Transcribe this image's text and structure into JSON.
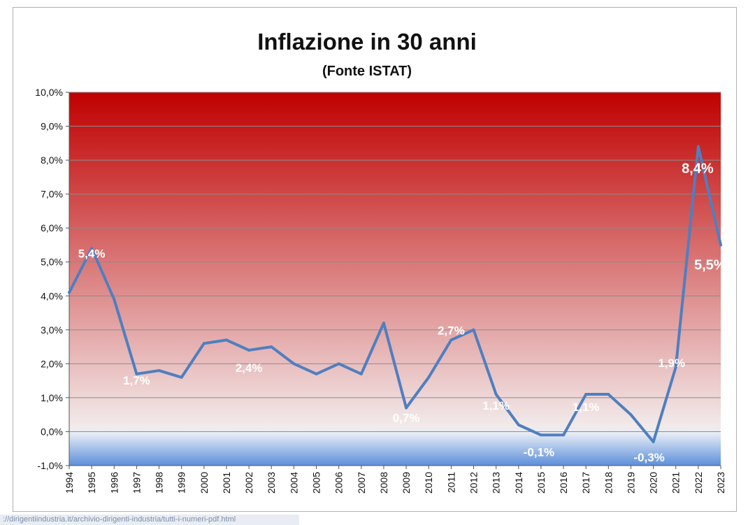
{
  "chart_data": {
    "type": "line",
    "title": "Inflazione in 30 anni",
    "subtitle": "(Fonte ISTAT)",
    "xlabel": "",
    "ylabel": "",
    "ylim": [
      -1.0,
      10.0
    ],
    "y_ticks": [
      "-1,0%",
      "0,0%",
      "1,0%",
      "2,0%",
      "3,0%",
      "4,0%",
      "5,0%",
      "6,0%",
      "7,0%",
      "8,0%",
      "9,0%",
      "10,0%"
    ],
    "y_tick_values": [
      -1,
      0,
      1,
      2,
      3,
      4,
      5,
      6,
      7,
      8,
      9,
      10
    ],
    "x": [
      "1994",
      "1995",
      "1996",
      "1997",
      "1998",
      "1999",
      "2000",
      "2001",
      "2002",
      "2003",
      "2004",
      "2005",
      "2006",
      "2007",
      "2008",
      "2009",
      "2010",
      "2011",
      "2012",
      "2013",
      "2014",
      "2015",
      "2016",
      "2017",
      "2018",
      "2019",
      "2020",
      "2021",
      "2022",
      "2023"
    ],
    "series": [
      {
        "values": [
          4.1,
          5.4,
          3.9,
          1.7,
          1.8,
          1.6,
          2.6,
          2.7,
          2.4,
          2.5,
          2.0,
          1.7,
          2.0,
          1.7,
          3.2,
          0.7,
          1.6,
          2.7,
          3.0,
          1.1,
          0.2,
          -0.1,
          -0.1,
          1.1,
          1.1,
          0.5,
          -0.3,
          1.9,
          8.4,
          5.5
        ],
        "color": "#4f7fc0"
      }
    ],
    "data_labels": [
      {
        "year": "1995",
        "text": "5,4%"
      },
      {
        "year": "1997",
        "text": "1,7%"
      },
      {
        "year": "2002",
        "text": "2,4%"
      },
      {
        "year": "2009",
        "text": "0,7%"
      },
      {
        "year": "2011",
        "text": "2,7%"
      },
      {
        "year": "2013",
        "text": "1,1%"
      },
      {
        "year": "2015",
        "text": "-0,1%"
      },
      {
        "year": "2017",
        "text": "1,1%"
      },
      {
        "year": "2020",
        "text": "-0,3%"
      },
      {
        "year": "2021",
        "text": "1,9%"
      },
      {
        "year": "2022",
        "text": "8,4%"
      },
      {
        "year": "2023",
        "text": "5,5%"
      }
    ],
    "grid": true,
    "background_colors": {
      "top": "#c00000",
      "zero": "#f2f2f2",
      "bottom": "#5b8fd9"
    }
  },
  "footer": {
    "url": "://dirigentiindustria.it/archivio-dirigenti-industria/tutti-i-numeri-pdf.html"
  }
}
